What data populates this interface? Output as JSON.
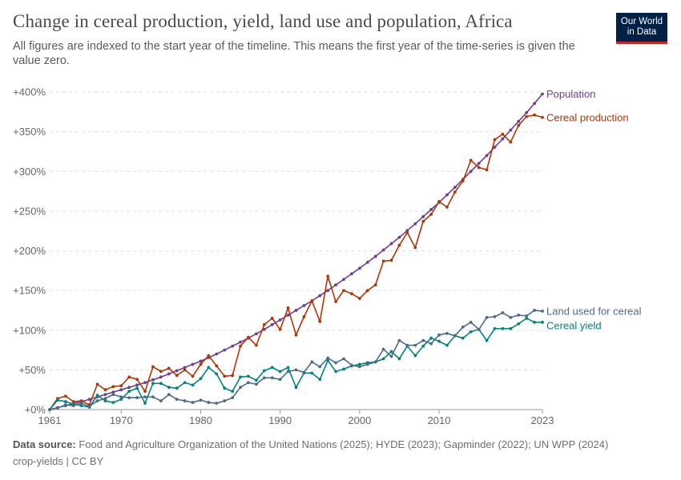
{
  "header": {
    "title": "Change in cereal production, yield, land use and population, Africa",
    "subtitle": "All figures are indexed to the start year of the timeline. This means the first year of the time-series is given the value zero.",
    "logo_line1": "Our World",
    "logo_line2": "in Data"
  },
  "footer": {
    "source_label": "Data source:",
    "source_text": "Food and Agriculture Organization of the United Nations (2025); HYDE (2023); Gapminder (2022); UN WPP (2024)",
    "credit": "crop-yields | CC BY"
  },
  "colors": {
    "population": "#6d3e91",
    "production": "#b13507",
    "land": "#4c6a8c",
    "yield": "#00847e",
    "grid": "#dddddd",
    "axis_text": "#666666"
  },
  "chart_data": {
    "type": "line",
    "xlim": [
      1961,
      2023
    ],
    "ylim": [
      0,
      400
    ],
    "y_ticks": [
      0,
      50,
      100,
      150,
      200,
      250,
      300,
      350,
      400
    ],
    "y_tick_labels": [
      "+0%",
      "+50%",
      "+100%",
      "+150%",
      "+200%",
      "+250%",
      "+300%",
      "+350%",
      "+400%"
    ],
    "x_ticks": [
      1961,
      1970,
      1980,
      1990,
      2000,
      2010,
      2023
    ],
    "x_tick_labels": [
      "1961",
      "1970",
      "1980",
      "1990",
      "2000",
      "2010",
      "2023"
    ],
    "grid": "horizontal dashed",
    "legend": "line-end labels, right",
    "series": [
      {
        "name": "Population",
        "color": "#6d3e91",
        "values": [
          0,
          2.5,
          5,
          7.5,
          10,
          13,
          16,
          19,
          22,
          25,
          28,
          31,
          34,
          37.5,
          41,
          45,
          49,
          53,
          57,
          61,
          65.5,
          70,
          75,
          80,
          85,
          90,
          95.5,
          101,
          107,
          113,
          119,
          125,
          131,
          137,
          143.5,
          150,
          157,
          164,
          171,
          178,
          185.5,
          193,
          201,
          209,
          217,
          225.5,
          234,
          243,
          252,
          261,
          270.5,
          280,
          290,
          300,
          310,
          320,
          330.5,
          341,
          352,
          363,
          374,
          385.5,
          397.5
        ]
      },
      {
        "name": "Cereal production",
        "color": "#b13507",
        "values": [
          0,
          14,
          17,
          10,
          11,
          6,
          32,
          25,
          29,
          30,
          41,
          38,
          23,
          54,
          48,
          52,
          43,
          50,
          42,
          57,
          68,
          55,
          42,
          43,
          80,
          91,
          81,
          107,
          115,
          101,
          128,
          94,
          117,
          137,
          111,
          168,
          136,
          150,
          146,
          140,
          150,
          157,
          187,
          188,
          207,
          223,
          204,
          237,
          246,
          262,
          255,
          274,
          288,
          314,
          305,
          302,
          340,
          347,
          337,
          358,
          369,
          371,
          368
        ]
      },
      {
        "name": "Land used for cereal",
        "color": "#4c6a8c",
        "values": [
          0,
          2,
          6,
          5,
          8,
          4,
          11,
          14,
          19,
          16,
          15,
          15,
          16,
          16,
          11,
          19,
          13,
          11,
          9,
          12,
          9,
          8,
          11,
          15,
          28,
          34,
          32,
          40,
          40,
          38,
          48,
          50,
          47,
          60,
          54,
          65,
          59,
          64,
          56,
          54,
          57,
          60,
          76,
          67,
          87,
          81,
          81,
          87,
          83,
          94,
          96,
          93,
          104,
          110,
          101,
          116,
          117,
          122,
          116,
          119,
          118,
          125,
          124
        ]
      },
      {
        "name": "Cereal yield",
        "color": "#00847e",
        "values": [
          0,
          12,
          10,
          7,
          5,
          3,
          18,
          11,
          9,
          13,
          23,
          27,
          8,
          33,
          33,
          28,
          27,
          34,
          31,
          39,
          53,
          45,
          27,
          23,
          41,
          42,
          37,
          49,
          53,
          48,
          53,
          28,
          46,
          46,
          38,
          62,
          48,
          51,
          55,
          57,
          59,
          60,
          64,
          73,
          64,
          80,
          68,
          80,
          90,
          86,
          81,
          93,
          90,
          98,
          101,
          87,
          102,
          102,
          102,
          108,
          115,
          110,
          110
        ]
      }
    ]
  }
}
